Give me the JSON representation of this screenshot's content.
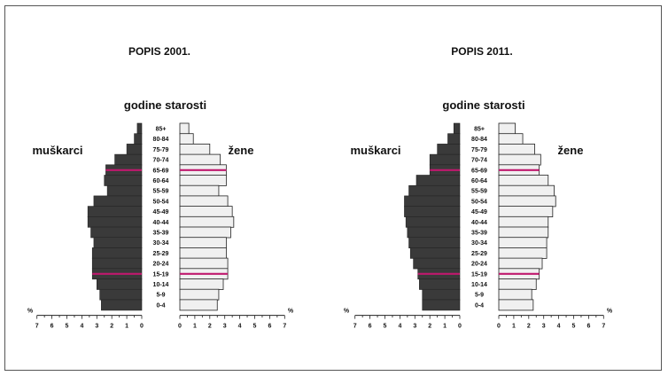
{
  "chart_data": [
    {
      "type": "bar",
      "title": "POPIS 2001.",
      "axis_title": "godine starosti",
      "left_label": "muškarci",
      "right_label": "žene",
      "unit": "%",
      "categories": [
        "85+",
        "80-84",
        "75-79",
        "70-74",
        "65-69",
        "60-64",
        "55-59",
        "50-54",
        "45-49",
        "40-44",
        "35-39",
        "30-34",
        "25-29",
        "20-24",
        "15-19",
        "10-14",
        "5-9",
        "0-4"
      ],
      "series": [
        {
          "name": "muškarci",
          "values": [
            0.3,
            0.5,
            1.0,
            1.8,
            2.4,
            2.5,
            2.3,
            3.2,
            3.6,
            3.6,
            3.4,
            3.2,
            3.3,
            3.3,
            3.3,
            3.0,
            2.8,
            2.7
          ]
        },
        {
          "name": "žene",
          "values": [
            0.6,
            0.9,
            2.0,
            2.7,
            3.1,
            3.1,
            2.6,
            3.2,
            3.5,
            3.6,
            3.4,
            3.1,
            3.1,
            3.2,
            3.2,
            2.9,
            2.6,
            2.5
          ]
        }
      ],
      "highlight_categories": [
        "65-69",
        "15-19"
      ],
      "xlim": [
        0,
        7
      ],
      "ticks": [
        "7",
        "6",
        "5",
        "4",
        "3",
        "2",
        "1",
        "0"
      ],
      "ticks_right": [
        "0",
        "1",
        "2",
        "3",
        "4",
        "5",
        "6",
        "7"
      ]
    },
    {
      "type": "bar",
      "title": "POPIS 2011.",
      "axis_title": "godine starosti",
      "left_label": "muškarci",
      "right_label": "žene",
      "unit": "%",
      "categories": [
        "85+",
        "80-84",
        "75-79",
        "70-74",
        "65-69",
        "60-64",
        "55-59",
        "50-54",
        "45-49",
        "40-44",
        "35-39",
        "30-34",
        "25-29",
        "20-24",
        "15-19",
        "10-14",
        "5-9",
        "0-4"
      ],
      "series": [
        {
          "name": "muškarci",
          "values": [
            0.4,
            0.8,
            1.5,
            2.0,
            2.0,
            2.9,
            3.4,
            3.7,
            3.7,
            3.6,
            3.5,
            3.4,
            3.3,
            3.1,
            2.8,
            2.7,
            2.5,
            2.5
          ]
        },
        {
          "name": "žene",
          "values": [
            1.1,
            1.6,
            2.4,
            2.8,
            2.7,
            3.3,
            3.7,
            3.8,
            3.6,
            3.3,
            3.3,
            3.2,
            3.2,
            2.9,
            2.7,
            2.5,
            2.2,
            2.3
          ]
        }
      ],
      "highlight_categories": [
        "65-69",
        "15-19"
      ],
      "xlim": [
        0,
        7
      ],
      "ticks": [
        "7",
        "6",
        "5",
        "4",
        "3",
        "2",
        "1",
        "0"
      ],
      "ticks_right": [
        "0",
        "1",
        "2",
        "3",
        "4",
        "5",
        "6",
        "7"
      ]
    }
  ],
  "colors": {
    "male": "#3a3a3a",
    "female": "#f0f0f0",
    "highlight": "#c0196e",
    "stroke": "#222222"
  }
}
